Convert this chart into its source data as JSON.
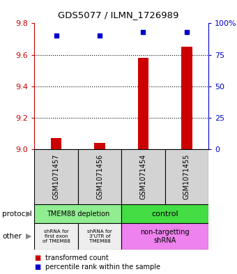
{
  "title": "GDS5077 / ILMN_1726989",
  "samples": [
    "GSM1071457",
    "GSM1071456",
    "GSM1071454",
    "GSM1071455"
  ],
  "red_values": [
    9.07,
    9.04,
    9.58,
    9.65
  ],
  "blue_values": [
    9.72,
    9.72,
    9.745,
    9.745
  ],
  "ylim": [
    9.0,
    9.8
  ],
  "yticks_left": [
    9.0,
    9.2,
    9.4,
    9.6,
    9.8
  ],
  "yticks_right_pos": [
    9.0,
    9.2,
    9.4,
    9.6,
    9.8
  ],
  "yticks_right_labels": [
    "0",
    "25",
    "50",
    "75",
    "100%"
  ],
  "grid_lines": [
    9.2,
    9.4,
    9.6
  ],
  "bg_color": "#FFFFFF",
  "bar_color": "#CC0000",
  "dot_color": "#0000CC",
  "label_color_left": "#CC0000",
  "label_color_right": "#0000CC",
  "bar_width": 0.25,
  "protocol_left_label": "TMEM88 depletion",
  "protocol_left_color": "#90EE90",
  "protocol_right_label": "control",
  "protocol_right_color": "#44DD44",
  "other_col0_label": "shRNA for\nfirst exon\nof TMEM88",
  "other_col0_color": "#EEEEEE",
  "other_col1_label": "shRNA for\n3'UTR of\nTMEM88",
  "other_col1_color": "#EEEEEE",
  "other_col23_label": "non-targetting\nshRNA",
  "other_col23_color": "#EE82EE",
  "sample_box_color": "#D3D3D3",
  "legend_red_label": "transformed count",
  "legend_blue_label": "percentile rank within the sample"
}
